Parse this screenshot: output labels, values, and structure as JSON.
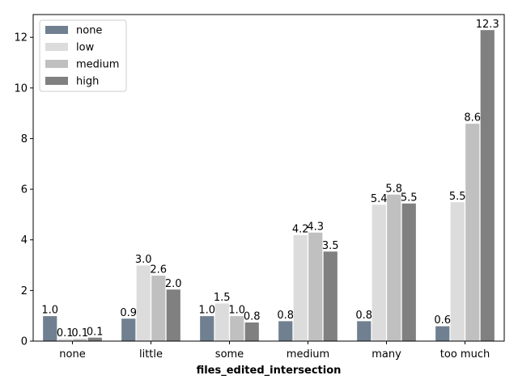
{
  "chart_data": {
    "type": "bar",
    "title": "",
    "xlabel": "files_edited_intersection",
    "ylabel": "",
    "categories": [
      "none",
      "little",
      "some",
      "medium",
      "many",
      "too much"
    ],
    "series": [
      {
        "name": "none",
        "color": "#708090",
        "values": [
          1.0,
          0.9,
          1.0,
          0.8,
          0.8,
          0.6
        ],
        "labels": [
          "1.0",
          "0.9",
          "1.0",
          "0.8",
          "0.8",
          "0.6"
        ]
      },
      {
        "name": "low",
        "color": "#dcdcdc",
        "values": [
          0.1,
          3.0,
          1.5,
          4.2,
          5.4,
          5.5
        ],
        "labels": [
          "0.1",
          "3.0",
          "1.5",
          "4.2",
          "5.4",
          "5.5"
        ]
      },
      {
        "name": "medium",
        "color": "#c0c0c0",
        "values": [
          0.1,
          2.6,
          1.0,
          4.3,
          5.8,
          8.6
        ],
        "labels": [
          "0.1",
          "2.6",
          "1.0",
          "4.3",
          "5.8",
          "8.6"
        ]
      },
      {
        "name": "high",
        "color": "#808080",
        "values": [
          0.15,
          2.05,
          0.75,
          3.55,
          5.45,
          12.3
        ],
        "labels": [
          "0.1",
          "2.0",
          "0.8",
          "3.5",
          "5.5",
          "12.3"
        ]
      }
    ],
    "ylim": [
      0,
      12.9
    ],
    "yticks": [
      0,
      2,
      4,
      6,
      8,
      10,
      12
    ],
    "ytick_labels": [
      "0",
      "2",
      "4",
      "6",
      "8",
      "10",
      "12"
    ],
    "grid": false,
    "legend_position": "top-left"
  }
}
